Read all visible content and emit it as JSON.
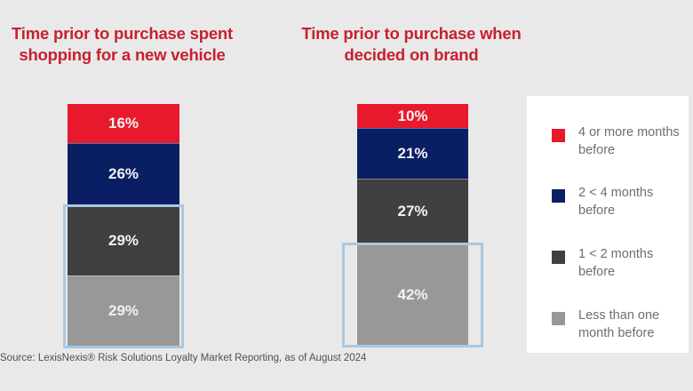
{
  "chart_data": [
    {
      "type": "bar",
      "stacked": true,
      "title": "Time prior to purchase spent shopping for a new vehicle",
      "categories": [
        "Time prior to purchase spent shopping for a new vehicle"
      ],
      "series": [
        {
          "name": "4 or more months before",
          "values": [
            16
          ],
          "label": "16%"
        },
        {
          "name": "2 < 4 months before",
          "values": [
            26
          ],
          "label": "26%"
        },
        {
          "name": "1 < 2 months before",
          "values": [
            29
          ],
          "label": "29%"
        },
        {
          "name": "Less than one month before",
          "values": [
            29
          ],
          "label": "29%"
        }
      ],
      "highlighted_series": [
        "1 < 2 months before",
        "Less than one month before"
      ],
      "unit": "%",
      "ylim": [
        0,
        100
      ]
    },
    {
      "type": "bar",
      "stacked": true,
      "title": "Time prior to purchase when decided on brand",
      "categories": [
        "Time prior to purchase when decided on brand"
      ],
      "series": [
        {
          "name": "4 or more months before",
          "values": [
            10
          ],
          "label": "10%"
        },
        {
          "name": "2 < 4 months before",
          "values": [
            21
          ],
          "label": "21%"
        },
        {
          "name": "1 < 2 months before",
          "values": [
            27
          ],
          "label": "27%"
        },
        {
          "name": "Less than one month before",
          "values": [
            42
          ],
          "label": "42%"
        }
      ],
      "highlighted_series": [
        "Less than one month before"
      ],
      "unit": "%",
      "ylim": [
        0,
        100
      ]
    }
  ],
  "titles": {
    "left": "Time prior to purchase spent shopping for a new vehicle",
    "right": "Time prior to purchase when decided on brand"
  },
  "legend": {
    "placement": "right",
    "items": [
      {
        "label": "4 or more months before",
        "color": "#e8192c"
      },
      {
        "label": "2 < 4 months before",
        "color": "#0a1f63"
      },
      {
        "label": "1 < 2 months before",
        "color": "#404040"
      },
      {
        "label": "Less than one month before",
        "color": "#989896"
      }
    ]
  },
  "colors": {
    "title": "#c8202f",
    "highlight_box": "#a9c8e2",
    "background": "#e9e9e9"
  },
  "source": "Source: LexisNexis® Risk Solutions Loyalty Market Reporting, as of August 2024"
}
